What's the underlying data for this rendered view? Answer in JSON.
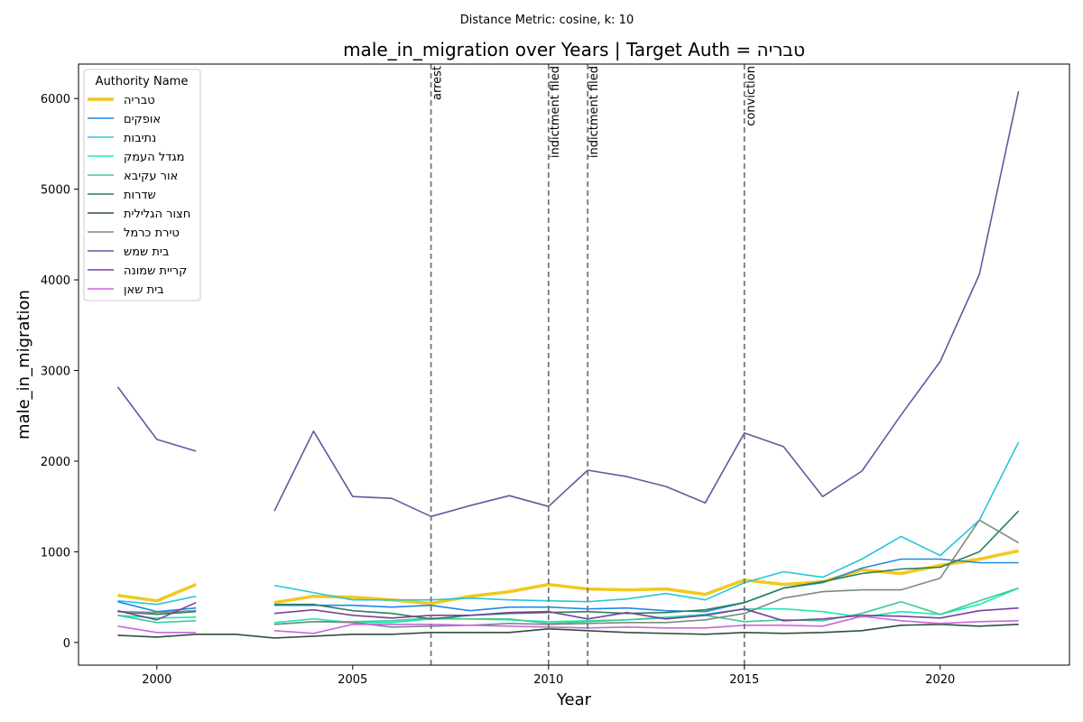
{
  "chart_data": {
    "type": "line",
    "suptitle": "Distance Metric: cosine, k: 10",
    "title": "male_in_migration over Years | Target Auth = טבריה",
    "xlabel": "Year",
    "ylabel": "male_in_migration",
    "xlim": [
      1998.0,
      2023.3
    ],
    "ylim": [
      -250,
      6380
    ],
    "x_ticks": [
      2000,
      2005,
      2010,
      2015,
      2020
    ],
    "y_ticks": [
      0,
      1000,
      2000,
      3000,
      4000,
      5000,
      6000
    ],
    "legend": {
      "title": "Authority Name",
      "position": "top-left"
    },
    "grid": false,
    "years": [
      1999,
      2000,
      2001,
      2002,
      2003,
      2004,
      2005,
      2006,
      2007,
      2008,
      2009,
      2010,
      2011,
      2012,
      2013,
      2014,
      2015,
      2016,
      2017,
      2018,
      2019,
      2020,
      2021,
      2022
    ],
    "events": [
      {
        "year": 2007,
        "label": "arrest"
      },
      {
        "year": 2010,
        "label": "indictment filed"
      },
      {
        "year": 2011,
        "label": "indictment filed"
      },
      {
        "year": 2015,
        "label": "conviction"
      }
    ],
    "series": [
      {
        "name": "טבריה",
        "color": "#f2c81e",
        "width": 3.5,
        "values": [
          520,
          460,
          640,
          null,
          440,
          510,
          500,
          470,
          430,
          510,
          560,
          640,
          590,
          580,
          590,
          530,
          690,
          640,
          670,
          800,
          760,
          850,
          920,
          1010
        ]
      },
      {
        "name": "אופקים",
        "color": "#1e88e5",
        "width": 1.6,
        "values": [
          450,
          340,
          380,
          null,
          410,
          410,
          410,
          390,
          410,
          350,
          390,
          390,
          370,
          380,
          350,
          340,
          440,
          600,
          660,
          820,
          920,
          920,
          880,
          880
        ]
      },
      {
        "name": "נתיבות",
        "color": "#26c6da",
        "width": 1.6,
        "values": [
          460,
          420,
          510,
          null,
          630,
          550,
          470,
          470,
          470,
          490,
          470,
          460,
          450,
          480,
          540,
          470,
          660,
          780,
          720,
          920,
          1170,
          960,
          1350,
          2210
        ]
      },
      {
        "name": "מגדל העמק",
        "color": "#1de9b6",
        "width": 1.6,
        "values": [
          300,
          270,
          280,
          null,
          220,
          260,
          220,
          220,
          260,
          260,
          250,
          230,
          240,
          250,
          280,
          310,
          370,
          370,
          340,
          280,
          340,
          310,
          420,
          600
        ]
      },
      {
        "name": "אור עקיבא",
        "color": "#3dcc91",
        "width": 1.6,
        "values": [
          300,
          220,
          240,
          null,
          200,
          230,
          230,
          240,
          270,
          260,
          260,
          210,
          230,
          250,
          270,
          300,
          230,
          250,
          240,
          320,
          450,
          310,
          460,
          600
        ]
      },
      {
        "name": "שדרות",
        "color": "#2e7d5b",
        "width": 1.6,
        "values": [
          340,
          310,
          340,
          null,
          420,
          420,
          350,
          320,
          260,
          300,
          320,
          330,
          340,
          320,
          330,
          360,
          440,
          600,
          670,
          760,
          810,
          830,
          1000,
          1450
        ]
      },
      {
        "name": "חצור הגלילית",
        "color": "#2f4f3f",
        "width": 1.6,
        "values": [
          80,
          60,
          90,
          90,
          50,
          70,
          90,
          90,
          110,
          110,
          110,
          150,
          130,
          110,
          100,
          90,
          110,
          100,
          110,
          130,
          190,
          200,
          180,
          200
        ]
      },
      {
        "name": "טירת כרמל",
        "color": "#7b8b80",
        "width": 1.6,
        "values": [
          340,
          330,
          350,
          null,
          200,
          230,
          220,
          170,
          180,
          190,
          210,
          200,
          210,
          220,
          220,
          250,
          320,
          490,
          560,
          580,
          580,
          710,
          1350,
          1100
        ]
      },
      {
        "name": "בית שמש",
        "color": "#5e5b9e",
        "width": 1.6,
        "values": [
          2820,
          2240,
          2110,
          null,
          1450,
          2330,
          1610,
          1590,
          1390,
          1510,
          1620,
          1500,
          1900,
          1830,
          1720,
          1540,
          2310,
          2160,
          1610,
          1890,
          2510,
          3100,
          4060,
          6080
        ]
      },
      {
        "name": "קריית שמונה",
        "color": "#7b3f9e",
        "width": 1.6,
        "values": [
          350,
          250,
          440,
          null,
          320,
          360,
          300,
          270,
          300,
          300,
          330,
          340,
          260,
          330,
          260,
          300,
          370,
          240,
          260,
          300,
          290,
          270,
          350,
          380
        ]
      },
      {
        "name": "בית שאן",
        "color": "#cc66dd",
        "width": 1.6,
        "values": [
          180,
          110,
          110,
          null,
          130,
          100,
          200,
          200,
          200,
          190,
          180,
          170,
          160,
          170,
          160,
          160,
          190,
          190,
          180,
          290,
          240,
          210,
          230,
          240
        ]
      }
    ]
  }
}
